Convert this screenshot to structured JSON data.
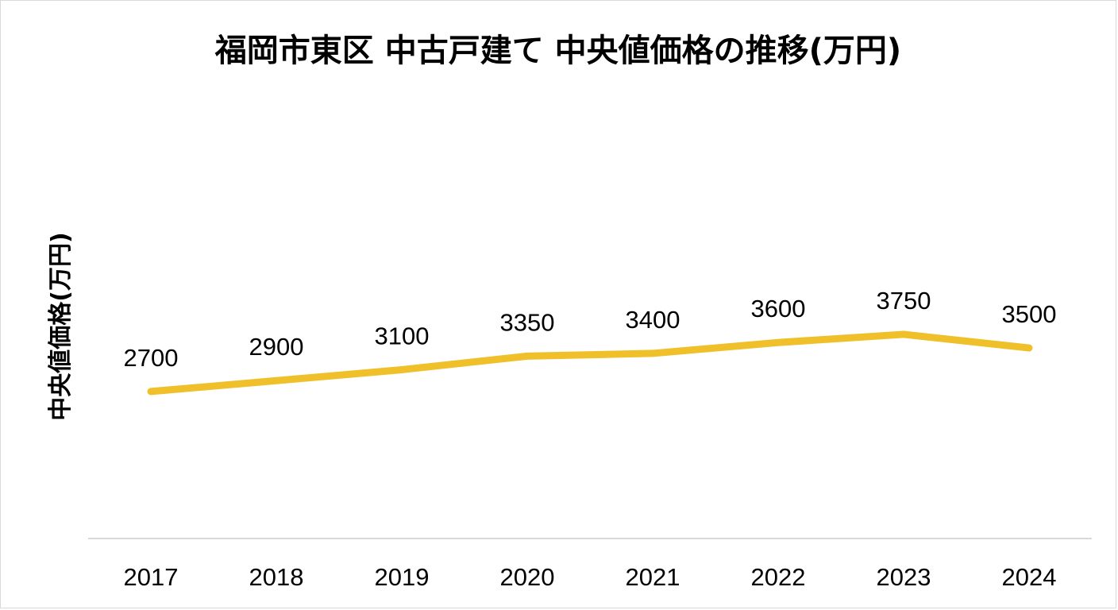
{
  "chart_data": {
    "type": "line",
    "title": "福岡市東区 中古戸建て 中央値価格の推移(万円)",
    "xlabel": "",
    "ylabel": "中央値価格(万円)",
    "categories": [
      "2017",
      "2018",
      "2019",
      "2020",
      "2021",
      "2022",
      "2023",
      "2024"
    ],
    "series": [
      {
        "values": [
          2700,
          2900,
          3100,
          3350,
          3400,
          3600,
          3750,
          3500
        ],
        "color": "#F0C02A"
      }
    ],
    "ylim": [
      0,
      4250
    ],
    "grid": false,
    "legend": "none",
    "data_labels": true
  },
  "colors": {
    "line": "#F0C02A",
    "axis": "#d9d9d9",
    "text": "#000000"
  }
}
